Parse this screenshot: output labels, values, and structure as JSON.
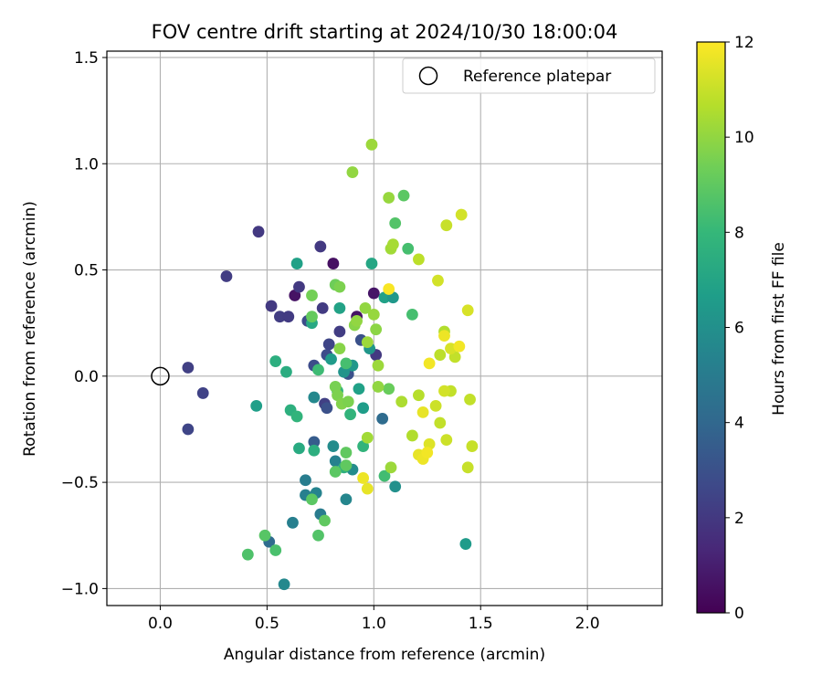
{
  "chart_data": {
    "type": "scatter",
    "title": "FOV centre drift starting at 2024/10/30 18:00:04",
    "xlabel": "Angular distance from reference (arcmin)",
    "ylabel": "Rotation from reference (arcmin)",
    "xlim": [
      -0.25,
      2.35
    ],
    "ylim": [
      -1.08,
      1.53
    ],
    "xticks": [
      0.0,
      0.5,
      1.0,
      1.5,
      2.0
    ],
    "xtick_labels": [
      "0.0",
      "0.5",
      "1.0",
      "1.5",
      "2.0"
    ],
    "yticks": [
      -1.0,
      -0.5,
      0.0,
      0.5,
      1.0,
      1.5
    ],
    "ytick_labels": [
      "−1.0",
      "−0.5",
      "0.0",
      "0.5",
      "1.0",
      "1.5"
    ],
    "grid": true,
    "legend": {
      "position": "top-right",
      "entries": [
        "Reference platepar"
      ]
    },
    "reference_point": {
      "x": 0.0,
      "y": 0.0,
      "label": "Reference platepar"
    },
    "colorbar": {
      "label": "Hours from first FF file",
      "min": 0,
      "max": 12,
      "ticks": [
        0,
        2,
        4,
        6,
        8,
        10,
        12
      ],
      "tick_labels": [
        "0",
        "2",
        "4",
        "6",
        "8",
        "10",
        "12"
      ],
      "colormap": "viridis",
      "colormap_stops": [
        "#440154",
        "#482878",
        "#3e4989",
        "#31688e",
        "#26828e",
        "#1f9e89",
        "#35b779",
        "#6ece58",
        "#b5de2b",
        "#fde725"
      ]
    },
    "points": [
      {
        "x": 0.13,
        "y": 0.04,
        "c": 2.3
      },
      {
        "x": 0.2,
        "y": -0.08,
        "c": 2.4
      },
      {
        "x": 0.13,
        "y": -0.25,
        "c": 2.5
      },
      {
        "x": 0.31,
        "y": 0.47,
        "c": 2.2
      },
      {
        "x": 0.46,
        "y": 0.68,
        "c": 2.0
      },
      {
        "x": 0.52,
        "y": 0.33,
        "c": 2.0
      },
      {
        "x": 0.56,
        "y": 0.28,
        "c": 2.2
      },
      {
        "x": 0.6,
        "y": 0.28,
        "c": 2.1
      },
      {
        "x": 0.63,
        "y": 0.38,
        "c": 0.6
      },
      {
        "x": 0.65,
        "y": 0.42,
        "c": 2.0
      },
      {
        "x": 0.69,
        "y": 0.26,
        "c": 2.8
      },
      {
        "x": 0.75,
        "y": 0.61,
        "c": 2.0
      },
      {
        "x": 0.81,
        "y": 0.53,
        "c": 0.5
      },
      {
        "x": 0.76,
        "y": 0.32,
        "c": 2.1
      },
      {
        "x": 0.84,
        "y": 0.21,
        "c": 2.2
      },
      {
        "x": 0.92,
        "y": 0.28,
        "c": 0.6
      },
      {
        "x": 1.0,
        "y": 0.39,
        "c": 0.7
      },
      {
        "x": 0.72,
        "y": 0.05,
        "c": 2.8
      },
      {
        "x": 0.78,
        "y": 0.1,
        "c": 2.8
      },
      {
        "x": 0.79,
        "y": 0.15,
        "c": 2.5
      },
      {
        "x": 0.77,
        "y": -0.13,
        "c": 2.3
      },
      {
        "x": 1.01,
        "y": 0.1,
        "c": 2.0
      },
      {
        "x": 0.94,
        "y": 0.17,
        "c": 3.0
      },
      {
        "x": 0.88,
        "y": 0.01,
        "c": 3.0
      },
      {
        "x": 0.72,
        "y": -0.31,
        "c": 3.5
      },
      {
        "x": 0.78,
        "y": -0.15,
        "c": 3.0
      },
      {
        "x": 1.04,
        "y": -0.2,
        "c": 4.2
      },
      {
        "x": 0.51,
        "y": -0.78,
        "c": 4.2
      },
      {
        "x": 0.58,
        "y": -0.98,
        "c": 5.6
      },
      {
        "x": 0.62,
        "y": -0.69,
        "c": 5.2
      },
      {
        "x": 0.68,
        "y": -0.56,
        "c": 5.2
      },
      {
        "x": 0.68,
        "y": -0.49,
        "c": 5.1
      },
      {
        "x": 0.73,
        "y": -0.55,
        "c": 5.4
      },
      {
        "x": 0.75,
        "y": -0.65,
        "c": 5.0
      },
      {
        "x": 0.82,
        "y": -0.4,
        "c": 5.3
      },
      {
        "x": 0.87,
        "y": -0.58,
        "c": 5.5
      },
      {
        "x": 0.72,
        "y": -0.1,
        "c": 5.6
      },
      {
        "x": 0.81,
        "y": -0.33,
        "c": 5.8
      },
      {
        "x": 0.9,
        "y": -0.44,
        "c": 5.8
      },
      {
        "x": 1.1,
        "y": -0.52,
        "c": 6.0
      },
      {
        "x": 1.43,
        "y": -0.79,
        "c": 6.5
      },
      {
        "x": 0.45,
        "y": -0.14,
        "c": 6.7
      },
      {
        "x": 0.54,
        "y": 0.07,
        "c": 7.5
      },
      {
        "x": 0.59,
        "y": 0.02,
        "c": 7.4
      },
      {
        "x": 0.64,
        "y": 0.53,
        "c": 6.8
      },
      {
        "x": 0.71,
        "y": 0.25,
        "c": 7.2
      },
      {
        "x": 0.8,
        "y": 0.08,
        "c": 6.5
      },
      {
        "x": 0.84,
        "y": 0.32,
        "c": 6.9
      },
      {
        "x": 0.86,
        "y": 0.02,
        "c": 6.2
      },
      {
        "x": 0.9,
        "y": 0.05,
        "c": 6.4
      },
      {
        "x": 0.93,
        "y": -0.06,
        "c": 6.8
      },
      {
        "x": 0.95,
        "y": -0.15,
        "c": 6.6
      },
      {
        "x": 0.98,
        "y": 0.13,
        "c": 6.3
      },
      {
        "x": 0.99,
        "y": 0.53,
        "c": 7.1
      },
      {
        "x": 1.05,
        "y": 0.37,
        "c": 6.8
      },
      {
        "x": 1.09,
        "y": 0.37,
        "c": 6.4
      },
      {
        "x": 0.65,
        "y": -0.34,
        "c": 7.3
      },
      {
        "x": 0.61,
        "y": -0.16,
        "c": 7.6
      },
      {
        "x": 0.64,
        "y": -0.19,
        "c": 7.8
      },
      {
        "x": 0.72,
        "y": -0.35,
        "c": 7.5
      },
      {
        "x": 0.83,
        "y": -0.07,
        "c": 7.9
      },
      {
        "x": 0.86,
        "y": -0.43,
        "c": 7.6
      },
      {
        "x": 0.89,
        "y": -0.18,
        "c": 7.8
      },
      {
        "x": 0.95,
        "y": -0.33,
        "c": 7.8
      },
      {
        "x": 0.74,
        "y": 0.03,
        "c": 8.2
      },
      {
        "x": 0.87,
        "y": 0.06,
        "c": 8.4
      },
      {
        "x": 1.05,
        "y": -0.47,
        "c": 8.3
      },
      {
        "x": 1.18,
        "y": 0.29,
        "c": 8.4
      },
      {
        "x": 1.16,
        "y": 0.6,
        "c": 8.4
      },
      {
        "x": 1.1,
        "y": 0.72,
        "c": 8.7
      },
      {
        "x": 1.14,
        "y": 0.85,
        "c": 8.9
      },
      {
        "x": 0.41,
        "y": -0.84,
        "c": 8.6
      },
      {
        "x": 0.49,
        "y": -0.75,
        "c": 8.8
      },
      {
        "x": 0.54,
        "y": -0.82,
        "c": 8.5
      },
      {
        "x": 0.71,
        "y": -0.58,
        "c": 8.9
      },
      {
        "x": 0.74,
        "y": -0.75,
        "c": 8.7
      },
      {
        "x": 0.77,
        "y": -0.68,
        "c": 9.0
      },
      {
        "x": 0.82,
        "y": -0.45,
        "c": 8.9
      },
      {
        "x": 0.87,
        "y": -0.42,
        "c": 9.0
      },
      {
        "x": 0.87,
        "y": -0.36,
        "c": 9.0
      },
      {
        "x": 1.07,
        "y": -0.06,
        "c": 9.2
      },
      {
        "x": 0.71,
        "y": 0.38,
        "c": 9.4
      },
      {
        "x": 0.71,
        "y": 0.28,
        "c": 9.1
      },
      {
        "x": 0.82,
        "y": 0.43,
        "c": 9.3
      },
      {
        "x": 0.84,
        "y": 0.42,
        "c": 9.6
      },
      {
        "x": 0.84,
        "y": 0.13,
        "c": 9.8
      },
      {
        "x": 0.82,
        "y": -0.05,
        "c": 9.5
      },
      {
        "x": 0.83,
        "y": -0.09,
        "c": 9.6
      },
      {
        "x": 0.85,
        "y": -0.13,
        "c": 9.7
      },
      {
        "x": 0.88,
        "y": -0.12,
        "c": 9.6
      },
      {
        "x": 0.91,
        "y": 0.24,
        "c": 9.8
      },
      {
        "x": 0.92,
        "y": 0.26,
        "c": 10.0
      },
      {
        "x": 0.96,
        "y": 0.32,
        "c": 10.0
      },
      {
        "x": 0.97,
        "y": 0.16,
        "c": 10.2
      },
      {
        "x": 1.0,
        "y": 0.29,
        "c": 10.1
      },
      {
        "x": 1.01,
        "y": 0.22,
        "c": 9.9
      },
      {
        "x": 1.02,
        "y": 0.05,
        "c": 10.2
      },
      {
        "x": 1.02,
        "y": -0.05,
        "c": 10.0
      },
      {
        "x": 0.9,
        "y": 0.96,
        "c": 10.0
      },
      {
        "x": 0.99,
        "y": 1.09,
        "c": 10.2
      },
      {
        "x": 1.07,
        "y": 0.84,
        "c": 10.1
      },
      {
        "x": 1.08,
        "y": 0.6,
        "c": 10.3
      },
      {
        "x": 1.09,
        "y": 0.62,
        "c": 10.4
      },
      {
        "x": 0.97,
        "y": -0.29,
        "c": 10.3
      },
      {
        "x": 1.08,
        "y": -0.43,
        "c": 10.2
      },
      {
        "x": 1.13,
        "y": -0.12,
        "c": 10.5
      },
      {
        "x": 1.18,
        "y": -0.28,
        "c": 10.6
      },
      {
        "x": 1.21,
        "y": -0.09,
        "c": 10.7
      },
      {
        "x": 1.21,
        "y": 0.55,
        "c": 10.8
      },
      {
        "x": 1.31,
        "y": -0.22,
        "c": 10.9
      },
      {
        "x": 1.31,
        "y": 0.1,
        "c": 10.8
      },
      {
        "x": 1.33,
        "y": 0.21,
        "c": 10.6
      },
      {
        "x": 1.34,
        "y": 0.71,
        "c": 11.0
      },
      {
        "x": 1.36,
        "y": -0.07,
        "c": 10.9
      },
      {
        "x": 1.38,
        "y": 0.09,
        "c": 10.9
      },
      {
        "x": 1.41,
        "y": 0.76,
        "c": 11.2
      },
      {
        "x": 1.44,
        "y": -0.43,
        "c": 11.0
      },
      {
        "x": 1.45,
        "y": -0.11,
        "c": 10.9
      },
      {
        "x": 1.46,
        "y": -0.33,
        "c": 11.0
      },
      {
        "x": 1.44,
        "y": 0.31,
        "c": 11.3
      },
      {
        "x": 1.3,
        "y": 0.45,
        "c": 11.2
      },
      {
        "x": 1.29,
        "y": -0.14,
        "c": 11.1
      },
      {
        "x": 1.34,
        "y": -0.3,
        "c": 11.1
      },
      {
        "x": 1.33,
        "y": -0.07,
        "c": 11.2
      },
      {
        "x": 1.36,
        "y": 0.13,
        "c": 11.3
      },
      {
        "x": 1.26,
        "y": -0.32,
        "c": 11.4
      },
      {
        "x": 1.21,
        "y": -0.37,
        "c": 11.6
      },
      {
        "x": 1.23,
        "y": -0.39,
        "c": 11.7
      },
      {
        "x": 1.25,
        "y": -0.36,
        "c": 11.8
      },
      {
        "x": 1.23,
        "y": -0.17,
        "c": 11.6
      },
      {
        "x": 1.26,
        "y": 0.06,
        "c": 11.8
      },
      {
        "x": 1.33,
        "y": 0.19,
        "c": 11.7
      },
      {
        "x": 1.4,
        "y": 0.14,
        "c": 11.8
      },
      {
        "x": 0.97,
        "y": -0.53,
        "c": 11.6
      },
      {
        "x": 0.95,
        "y": -0.48,
        "c": 11.7
      },
      {
        "x": 1.07,
        "y": 0.41,
        "c": 11.9
      }
    ]
  }
}
